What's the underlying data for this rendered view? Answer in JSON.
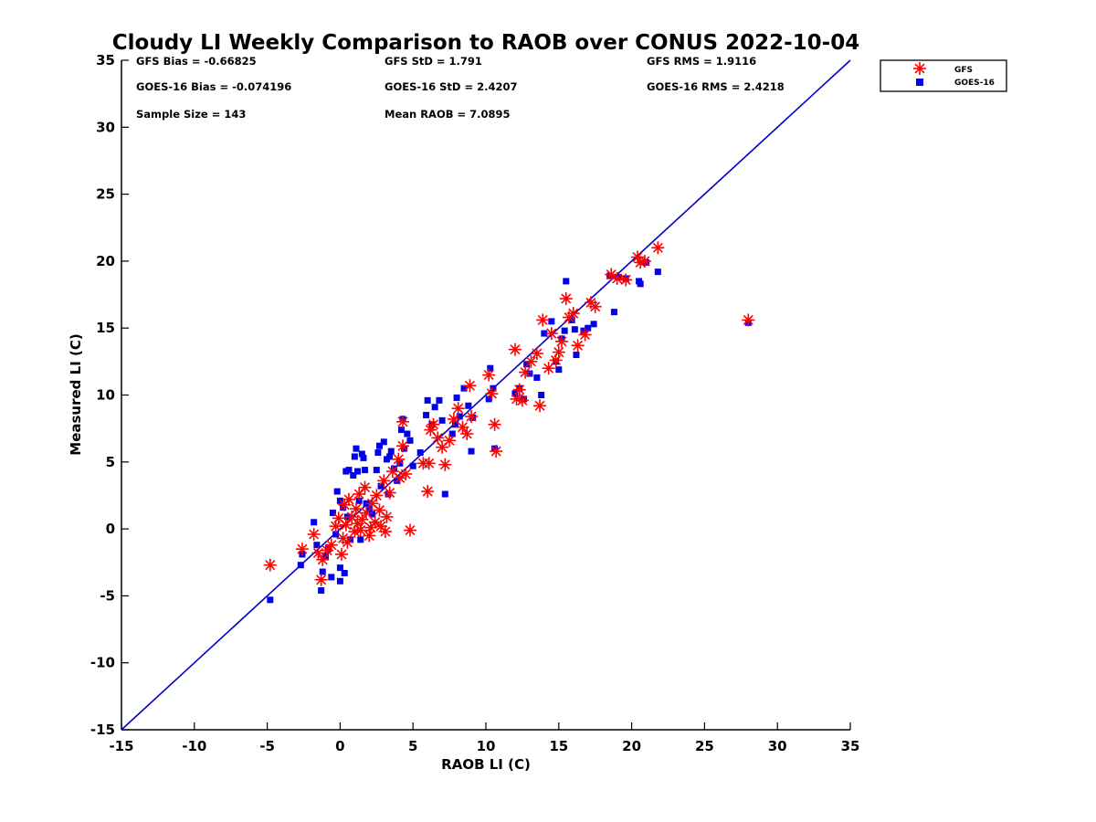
{
  "chart_data": {
    "type": "scatter",
    "title": "Cloudy LI Weekly Comparison to RAOB over CONUS 2022-10-04",
    "xlabel": "RAOB LI (C)",
    "ylabel": "Measured LI (C)",
    "xlim": [
      -15,
      35
    ],
    "ylim": [
      -15,
      35
    ],
    "xticks": [
      "-15",
      "-10",
      "-5",
      "0",
      "5",
      "10",
      "15",
      "20",
      "25",
      "30",
      "35"
    ],
    "yticks": [
      "-15",
      "-10",
      "-5",
      "0",
      "5",
      "10",
      "15",
      "20",
      "25",
      "30",
      "35"
    ],
    "grid": false,
    "legend_position": "top-right (outside plot)",
    "stats": [
      "GFS Bias = -0.66825",
      "GFS StD = 1.791",
      "GFS RMS = 1.9116",
      "GOES-16 Bias = -0.074196",
      "GOES-16 StD = 2.4207",
      "GOES-16 RMS = 2.4218",
      "Sample Size = 143",
      "Mean RAOB = 7.0895"
    ],
    "reference_line": {
      "x": [
        -15,
        35
      ],
      "y": [
        -15,
        35
      ],
      "color": "#0000cc"
    },
    "series": [
      {
        "name": "GFS",
        "marker": "asterisk",
        "color": "#ff0000",
        "points": [
          [
            -4.8,
            -2.7
          ],
          [
            -2.6,
            -1.5
          ],
          [
            -1.8,
            -0.4
          ],
          [
            -1.5,
            -1.8
          ],
          [
            -1.3,
            -3.8
          ],
          [
            -1.2,
            -2.3
          ],
          [
            -0.9,
            -1.6
          ],
          [
            -0.6,
            -1.2
          ],
          [
            -0.3,
            0.2
          ],
          [
            -0.1,
            0.8
          ],
          [
            0.1,
            -1.9
          ],
          [
            0.2,
            -0.7
          ],
          [
            0.3,
            1.8
          ],
          [
            0.4,
            0.3
          ],
          [
            0.5,
            -1.0
          ],
          [
            0.6,
            2.2
          ],
          [
            0.8,
            0.9
          ],
          [
            1.0,
            -0.2
          ],
          [
            1.1,
            1.5
          ],
          [
            1.2,
            0.4
          ],
          [
            1.3,
            2.6
          ],
          [
            1.4,
            -0.1
          ],
          [
            1.5,
            0.7
          ],
          [
            1.7,
            3.1
          ],
          [
            1.8,
            1.2
          ],
          [
            2.0,
            -0.5
          ],
          [
            2.1,
            0.1
          ],
          [
            2.2,
            1.9
          ],
          [
            2.4,
            0.5
          ],
          [
            2.5,
            2.5
          ],
          [
            2.7,
            1.4
          ],
          [
            2.8,
            0.2
          ],
          [
            3.0,
            3.6
          ],
          [
            3.1,
            -0.2
          ],
          [
            3.2,
            0.9
          ],
          [
            3.4,
            2.7
          ],
          [
            3.6,
            4.3
          ],
          [
            4.0,
            5.2
          ],
          [
            4.1,
            3.8
          ],
          [
            4.3,
            8.0
          ],
          [
            4.3,
            6.2
          ],
          [
            4.5,
            4.1
          ],
          [
            4.8,
            -0.1
          ],
          [
            5.7,
            4.9
          ],
          [
            6.0,
            2.8
          ],
          [
            6.1,
            4.9
          ],
          [
            6.2,
            7.4
          ],
          [
            6.4,
            7.8
          ],
          [
            6.7,
            6.8
          ],
          [
            7.0,
            6.1
          ],
          [
            7.2,
            4.8
          ],
          [
            7.5,
            6.6
          ],
          [
            7.8,
            8.2
          ],
          [
            8.1,
            9.0
          ],
          [
            8.4,
            7.6
          ],
          [
            8.7,
            7.1
          ],
          [
            8.9,
            10.7
          ],
          [
            9.0,
            8.4
          ],
          [
            10.2,
            11.5
          ],
          [
            10.4,
            10.1
          ],
          [
            10.6,
            7.8
          ],
          [
            10.7,
            5.8
          ],
          [
            12.0,
            13.4
          ],
          [
            12.1,
            9.7
          ],
          [
            12.3,
            10.4
          ],
          [
            12.5,
            9.6
          ],
          [
            12.7,
            11.7
          ],
          [
            13.1,
            12.5
          ],
          [
            13.5,
            13.1
          ],
          [
            13.7,
            9.2
          ],
          [
            13.9,
            15.6
          ],
          [
            14.3,
            12.0
          ],
          [
            14.5,
            14.6
          ],
          [
            14.8,
            12.6
          ],
          [
            15.0,
            13.2
          ],
          [
            15.2,
            14.0
          ],
          [
            15.5,
            17.2
          ],
          [
            15.7,
            15.8
          ],
          [
            16.0,
            16.1
          ],
          [
            16.3,
            13.7
          ],
          [
            16.8,
            14.5
          ],
          [
            17.2,
            16.9
          ],
          [
            17.5,
            16.6
          ],
          [
            18.6,
            19.0
          ],
          [
            19.0,
            18.7
          ],
          [
            19.6,
            18.6
          ],
          [
            20.4,
            20.3
          ],
          [
            20.6,
            19.9
          ],
          [
            20.9,
            20.0
          ],
          [
            21.8,
            21.0
          ],
          [
            28.0,
            15.6
          ]
        ]
      },
      {
        "name": "GOES-16",
        "marker": "square",
        "color": "#0000ee",
        "points": [
          [
            -4.8,
            -5.3
          ],
          [
            -2.7,
            -2.7
          ],
          [
            -2.6,
            -1.9
          ],
          [
            -1.8,
            0.5
          ],
          [
            -1.6,
            -1.2
          ],
          [
            -1.3,
            -4.6
          ],
          [
            -1.2,
            -3.2
          ],
          [
            -1.0,
            -2.0
          ],
          [
            -0.8,
            -1.5
          ],
          [
            -0.6,
            -3.6
          ],
          [
            -0.5,
            1.2
          ],
          [
            -0.3,
            -0.4
          ],
          [
            -0.2,
            2.8
          ],
          [
            0.0,
            2.1
          ],
          [
            0.0,
            -2.9
          ],
          [
            0.0,
            -3.9
          ],
          [
            0.2,
            1.6
          ],
          [
            0.3,
            -3.3
          ],
          [
            0.4,
            4.3
          ],
          [
            0.5,
            0.9
          ],
          [
            0.6,
            4.4
          ],
          [
            0.7,
            -0.8
          ],
          [
            0.9,
            4.0
          ],
          [
            1.0,
            5.4
          ],
          [
            1.1,
            6.0
          ],
          [
            1.2,
            4.3
          ],
          [
            1.3,
            2.1
          ],
          [
            1.4,
            -0.8
          ],
          [
            1.5,
            5.6
          ],
          [
            1.6,
            5.3
          ],
          [
            1.7,
            4.4
          ],
          [
            1.8,
            1.9
          ],
          [
            2.0,
            1.5
          ],
          [
            2.2,
            1.1
          ],
          [
            2.5,
            4.4
          ],
          [
            2.6,
            5.7
          ],
          [
            2.7,
            6.2
          ],
          [
            2.8,
            3.2
          ],
          [
            3.0,
            6.5
          ],
          [
            3.2,
            5.2
          ],
          [
            3.3,
            2.6
          ],
          [
            3.4,
            5.4
          ],
          [
            3.5,
            5.8
          ],
          [
            3.7,
            4.5
          ],
          [
            3.9,
            3.6
          ],
          [
            4.1,
            4.9
          ],
          [
            4.2,
            7.4
          ],
          [
            4.3,
            8.2
          ],
          [
            4.4,
            6.0
          ],
          [
            4.6,
            7.1
          ],
          [
            4.8,
            6.6
          ],
          [
            5.0,
            4.7
          ],
          [
            5.5,
            5.7
          ],
          [
            5.9,
            8.5
          ],
          [
            6.0,
            9.6
          ],
          [
            6.3,
            7.8
          ],
          [
            6.5,
            9.1
          ],
          [
            6.8,
            9.6
          ],
          [
            7.0,
            8.1
          ],
          [
            7.2,
            2.6
          ],
          [
            7.7,
            7.1
          ],
          [
            7.9,
            7.8
          ],
          [
            8.0,
            9.8
          ],
          [
            8.2,
            8.4
          ],
          [
            8.5,
            10.5
          ],
          [
            8.8,
            9.2
          ],
          [
            9.0,
            5.8
          ],
          [
            9.1,
            8.3
          ],
          [
            10.2,
            9.7
          ],
          [
            10.3,
            12.0
          ],
          [
            10.5,
            10.5
          ],
          [
            10.6,
            6.0
          ],
          [
            12.0,
            10.1
          ],
          [
            12.3,
            10.5
          ],
          [
            12.6,
            9.7
          ],
          [
            12.8,
            12.3
          ],
          [
            13.0,
            11.6
          ],
          [
            13.5,
            11.3
          ],
          [
            13.8,
            10.0
          ],
          [
            14.0,
            14.6
          ],
          [
            14.5,
            15.5
          ],
          [
            14.8,
            12.5
          ],
          [
            15.0,
            11.9
          ],
          [
            15.2,
            14.2
          ],
          [
            15.4,
            14.8
          ],
          [
            15.5,
            18.5
          ],
          [
            15.9,
            15.6
          ],
          [
            16.1,
            14.9
          ],
          [
            16.2,
            13.0
          ],
          [
            16.7,
            14.8
          ],
          [
            17.0,
            15.0
          ],
          [
            17.4,
            15.3
          ],
          [
            18.5,
            18.9
          ],
          [
            18.8,
            16.2
          ],
          [
            19.1,
            18.8
          ],
          [
            19.6,
            18.7
          ],
          [
            20.5,
            18.5
          ],
          [
            20.6,
            18.3
          ],
          [
            21.0,
            19.9
          ],
          [
            21.8,
            19.2
          ],
          [
            28.0,
            15.4
          ]
        ]
      }
    ]
  }
}
